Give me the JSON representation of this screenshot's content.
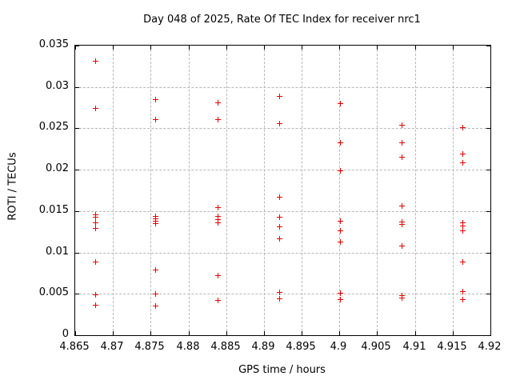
{
  "chart_data": {
    "type": "scatter",
    "title": "Day 048 of 2025, Rate Of TEC Index for receiver nrc1",
    "xlabel": "GPS time / hours",
    "ylabel": "ROTI / TECUs",
    "xlim": [
      4.865,
      4.92
    ],
    "ylim": [
      0,
      0.035
    ],
    "x_ticks": [
      4.865,
      4.87,
      4.875,
      4.88,
      4.885,
      4.89,
      4.895,
      4.9,
      4.905,
      4.91,
      4.915,
      4.92
    ],
    "x_tick_labels": [
      "4.865",
      "4.87",
      "4.875",
      "4.88",
      "4.885",
      "4.89",
      "4.895",
      "4.9",
      "4.905",
      "4.91",
      "4.915",
      "4.92"
    ],
    "y_ticks": [
      0,
      0.005,
      0.01,
      0.015,
      0.02,
      0.025,
      0.03,
      0.035
    ],
    "y_tick_labels": [
      "0",
      "0.005",
      "0.01",
      "0.015",
      "0.02",
      "0.025",
      "0.03",
      "0.035"
    ],
    "grid": true,
    "legend": "none",
    "marker": "plus",
    "marker_color": "#ee0000",
    "series": [
      {
        "name": "roti",
        "points": [
          [
            4.8678,
            0.0331
          ],
          [
            4.8678,
            0.0274
          ],
          [
            4.8678,
            0.0145
          ],
          [
            4.8678,
            0.0142
          ],
          [
            4.8678,
            0.0135
          ],
          [
            4.8678,
            0.0129
          ],
          [
            4.8678,
            0.0088
          ],
          [
            4.8678,
            0.0048
          ],
          [
            4.8678,
            0.0036
          ],
          [
            4.8757,
            0.0284
          ],
          [
            4.8757,
            0.026
          ],
          [
            4.8757,
            0.0143
          ],
          [
            4.8757,
            0.014
          ],
          [
            4.8757,
            0.0137
          ],
          [
            4.8757,
            0.0134
          ],
          [
            4.8757,
            0.0078
          ],
          [
            4.8757,
            0.0049
          ],
          [
            4.8757,
            0.0035
          ],
          [
            4.884,
            0.028
          ],
          [
            4.884,
            0.026
          ],
          [
            4.884,
            0.0154
          ],
          [
            4.884,
            0.0143
          ],
          [
            4.884,
            0.0139
          ],
          [
            4.884,
            0.0135
          ],
          [
            4.884,
            0.0072
          ],
          [
            4.884,
            0.0042
          ],
          [
            4.8921,
            0.0288
          ],
          [
            4.8921,
            0.0255
          ],
          [
            4.8921,
            0.0166
          ],
          [
            4.8921,
            0.0142
          ],
          [
            4.8921,
            0.0131
          ],
          [
            4.8921,
            0.0116
          ],
          [
            4.8921,
            0.0051
          ],
          [
            4.8921,
            0.0044
          ],
          [
            4.9002,
            0.0279
          ],
          [
            4.9002,
            0.0232
          ],
          [
            4.9002,
            0.0198
          ],
          [
            4.9002,
            0.0137
          ],
          [
            4.9002,
            0.0126
          ],
          [
            4.9002,
            0.0112
          ],
          [
            4.9002,
            0.005
          ],
          [
            4.9002,
            0.0043
          ],
          [
            4.9083,
            0.0253
          ],
          [
            4.9083,
            0.0232
          ],
          [
            4.9083,
            0.0215
          ],
          [
            4.9083,
            0.0156
          ],
          [
            4.9083,
            0.0136
          ],
          [
            4.9083,
            0.0133
          ],
          [
            4.9083,
            0.0107
          ],
          [
            4.9083,
            0.0047
          ],
          [
            4.9083,
            0.0045
          ],
          [
            4.9164,
            0.025
          ],
          [
            4.9164,
            0.0219
          ],
          [
            4.9164,
            0.0208
          ],
          [
            4.9164,
            0.0135
          ],
          [
            4.9164,
            0.0132
          ],
          [
            4.9164,
            0.0126
          ],
          [
            4.9164,
            0.0088
          ],
          [
            4.9164,
            0.0052
          ],
          [
            4.9164,
            0.0043
          ]
        ]
      }
    ]
  }
}
